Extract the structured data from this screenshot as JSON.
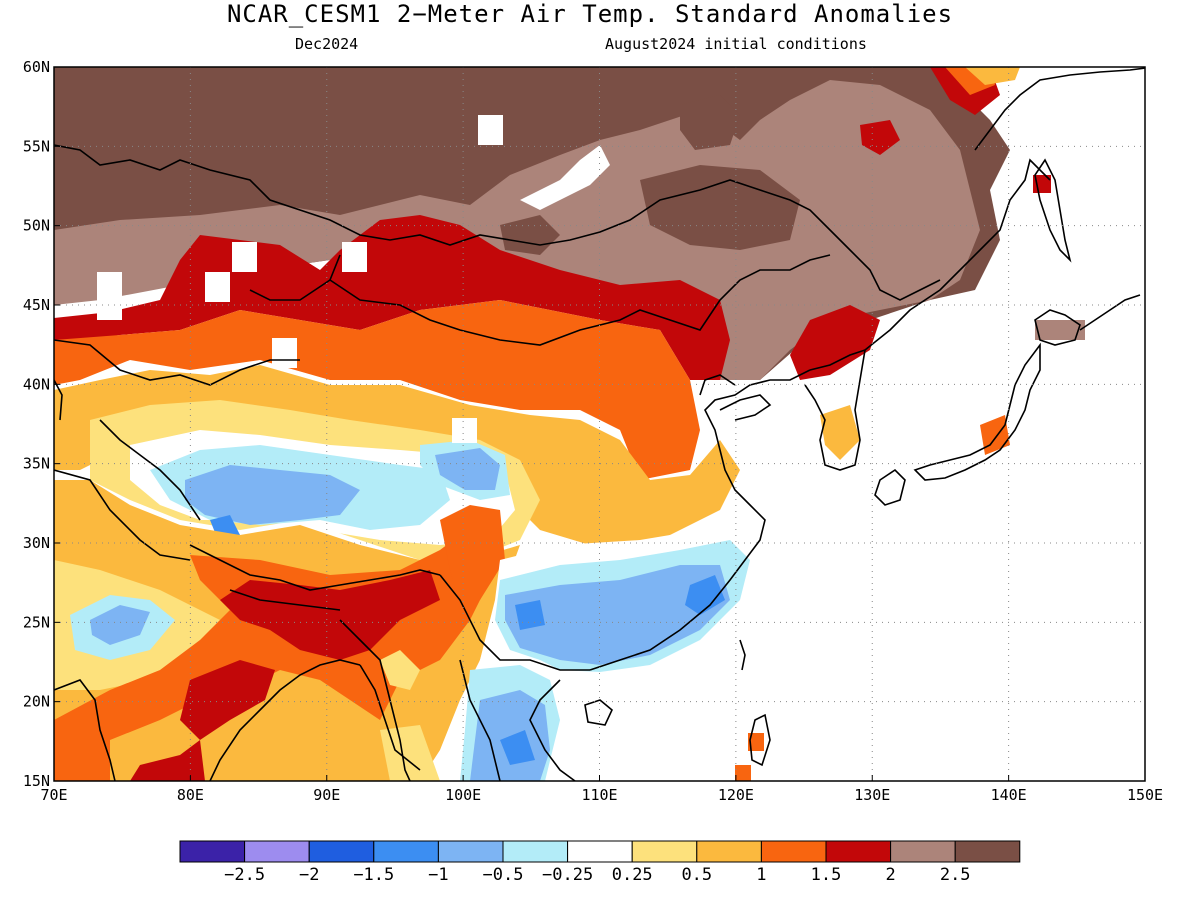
{
  "title": "NCAR_CESM1 2−Meter Air Temp. Standard Anomalies",
  "subtitle_left": "Dec2024",
  "subtitle_right": "August2024 initial conditions",
  "map": {
    "lon_range": [
      70,
      150
    ],
    "lat_range": [
      15,
      60
    ],
    "lon_ticks": [
      {
        "value": 70,
        "label": "70E"
      },
      {
        "value": 80,
        "label": "80E"
      },
      {
        "value": 90,
        "label": "90E"
      },
      {
        "value": 100,
        "label": "100E"
      },
      {
        "value": 110,
        "label": "110E"
      },
      {
        "value": 120,
        "label": "120E"
      },
      {
        "value": 130,
        "label": "130E"
      },
      {
        "value": 140,
        "label": "140E"
      },
      {
        "value": 150,
        "label": "150E"
      }
    ],
    "lat_ticks": [
      {
        "value": 15,
        "label": "15N"
      },
      {
        "value": 20,
        "label": "20N"
      },
      {
        "value": 25,
        "label": "25N"
      },
      {
        "value": 30,
        "label": "30N"
      },
      {
        "value": 35,
        "label": "35N"
      },
      {
        "value": 40,
        "label": "40N"
      },
      {
        "value": 45,
        "label": "45N"
      },
      {
        "value": 50,
        "label": "50N"
      },
      {
        "value": 55,
        "label": "55N"
      },
      {
        "value": 60,
        "label": "60N"
      }
    ],
    "gridlines": "dotted"
  },
  "colorbar": {
    "colors": [
      "#3b22a8",
      "#9d8cef",
      "#1f5ee0",
      "#3c8ef2",
      "#7db4f3",
      "#b3ecf8",
      "#ffffff",
      "#fde17c",
      "#fbb93e",
      "#f86510",
      "#c20709",
      "#ac847a",
      "#7a4f45"
    ],
    "labels": [
      "−2.5",
      "−2",
      "−1.5",
      "−1",
      "−0.5",
      "−0.25",
      "0.25",
      "0.5",
      "1",
      "1.5",
      "2",
      "2.5"
    ]
  }
}
